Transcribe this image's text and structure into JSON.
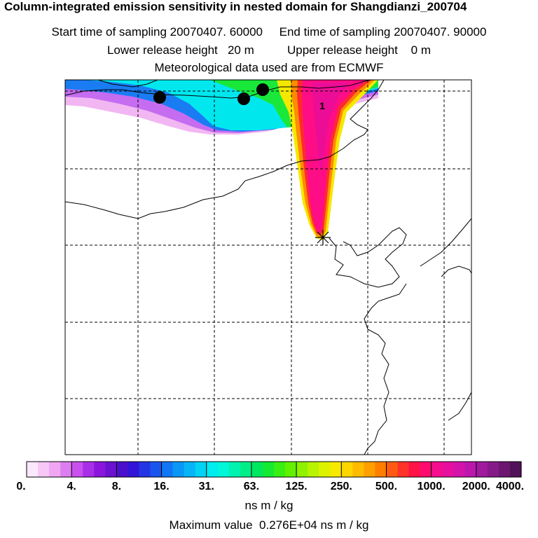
{
  "header": {
    "title": "Column-integrated emission sensitivity in nested domain for Shangdianzi_200704",
    "sampling_line": "Start time of sampling 20070407. 60000     End time of sampling 20070407. 90000",
    "height_line": "Lower release height   20 m          Upper release height    0 m",
    "met_line": "Meteorological data used are from ECMWF"
  },
  "map": {
    "contour_label": "1",
    "markers": [
      "trajectory-point",
      "trajectory-point",
      "trajectory-point"
    ],
    "release_marker": "release-site-star"
  },
  "colorbar": {
    "tick_labels": [
      "0.",
      "4.",
      "8.",
      "16.",
      "31.",
      "63.",
      "125.",
      "250.",
      "500.",
      "1000.",
      "2000.",
      "4000."
    ],
    "colors": [
      "#fce8fc",
      "#f7c7f7",
      "#f0a6f2",
      "#dd7ef0",
      "#c850ef",
      "#a92ee8",
      "#8a16dc",
      "#6a12d0",
      "#4b10cc",
      "#3315d8",
      "#2336e4",
      "#1a55ee",
      "#1176f4",
      "#0b97f6",
      "#07b5f6",
      "#04d2f4",
      "#00ecef",
      "#00f7d8",
      "#00f3b0",
      "#00ee88",
      "#00e860",
      "#14ea33",
      "#39ee13",
      "#62f000",
      "#8ef200",
      "#b8f300",
      "#ddf200",
      "#f7ea00",
      "#ffd500",
      "#ffbb00",
      "#ff9f00",
      "#ff7e00",
      "#ff5a14",
      "#ff3328",
      "#ff1247",
      "#ff0a6e",
      "#f60c8e",
      "#e6109f",
      "#d313aa",
      "#bb17ad",
      "#a1199f",
      "#861988",
      "#6c1670",
      "#521259"
    ]
  },
  "unit_label": "ns m / kg",
  "max_value_label": "Maximum value  0.276E+04 ns m / kg"
}
